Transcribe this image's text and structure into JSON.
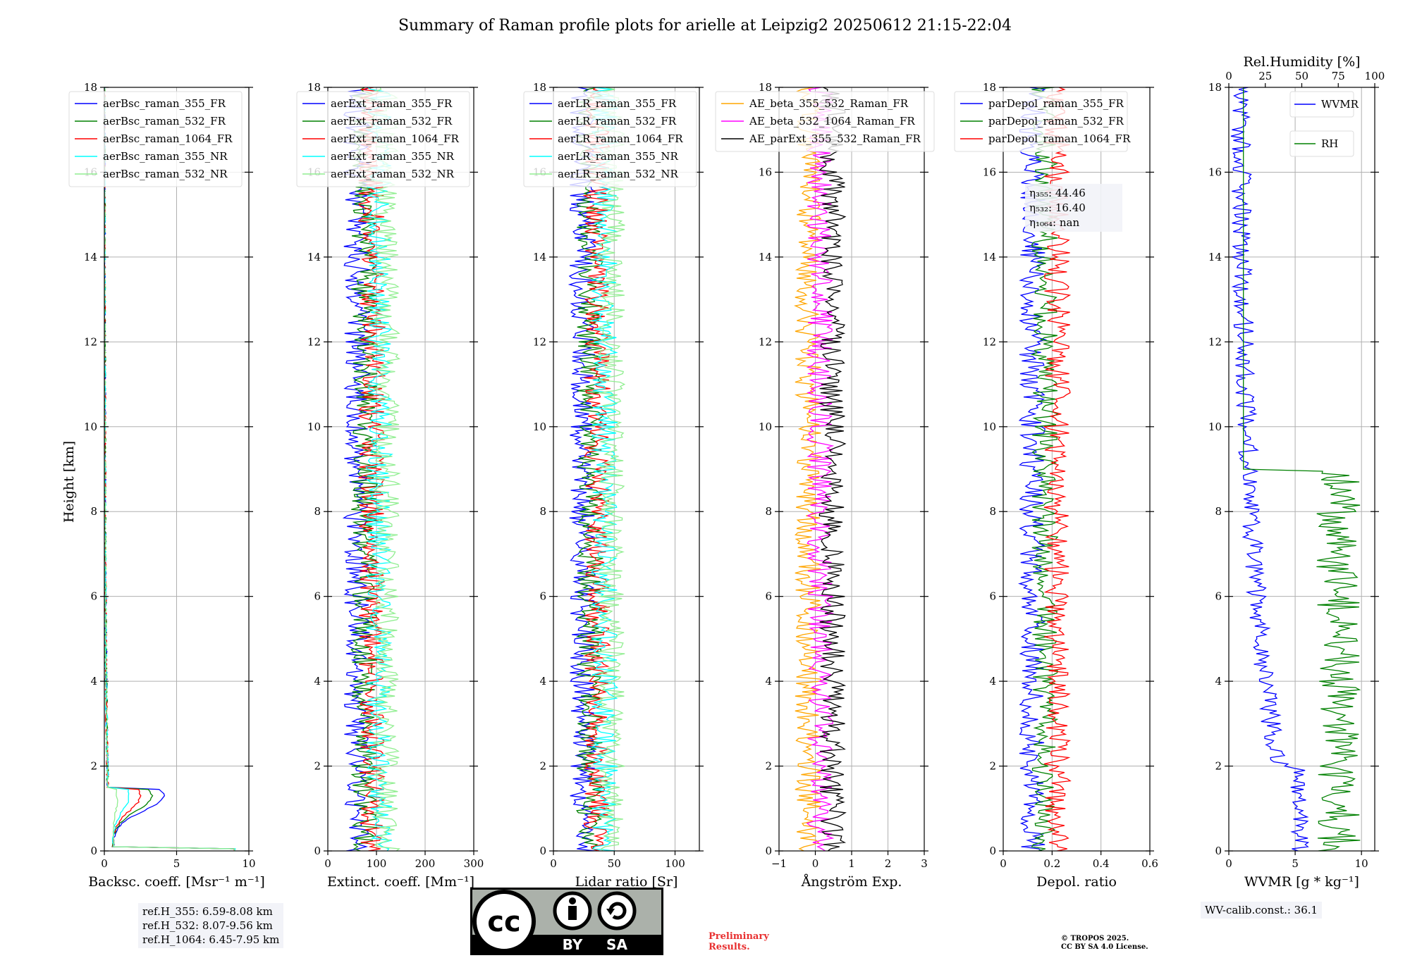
{
  "title": "Summary of Raman profile plots for arielle at Leipzig2 20250612 21:15-22:04",
  "ylabel": "Height [km]",
  "ylim": [
    0,
    18
  ],
  "yticks": [
    0,
    2,
    4,
    6,
    8,
    10,
    12,
    14,
    16,
    18
  ],
  "chart_data": [
    {
      "type": "line",
      "xlabel": "Backsc. coeff. [Msr⁻¹ m⁻¹]",
      "xlim": [
        0,
        10
      ],
      "xticks": [
        0,
        5,
        10
      ],
      "legend_placement": "top-left",
      "series": [
        {
          "name": "aerBsc_raman_355_FR",
          "color": "#0000ff"
        },
        {
          "name": "aerBsc_raman_532_FR",
          "color": "#008000"
        },
        {
          "name": "aerBsc_raman_1064_FR",
          "color": "#ff0000"
        },
        {
          "name": "aerBsc_raman_355_NR",
          "color": "#00ffff"
        },
        {
          "name": "aerBsc_raman_532_NR",
          "color": "#90ee90"
        }
      ]
    },
    {
      "type": "line",
      "xlabel": "Extinct. coeff. [Mm⁻¹]",
      "xlim": [
        0,
        300
      ],
      "xticks": [
        0,
        100,
        200,
        300
      ],
      "legend_placement": "top-left",
      "series": [
        {
          "name": "aerExt_raman_355_FR",
          "color": "#0000ff"
        },
        {
          "name": "aerExt_raman_532_FR",
          "color": "#008000"
        },
        {
          "name": "aerExt_raman_1064_FR",
          "color": "#ff0000"
        },
        {
          "name": "aerExt_raman_355_NR",
          "color": "#00ffff"
        },
        {
          "name": "aerExt_raman_532_NR",
          "color": "#90ee90"
        }
      ]
    },
    {
      "type": "line",
      "xlabel": "Lidar ratio [Sr]",
      "xlim": [
        0,
        120
      ],
      "xticks": [
        0,
        50,
        100
      ],
      "legend_placement": "top-left",
      "series": [
        {
          "name": "aerLR_raman_355_FR",
          "color": "#0000ff"
        },
        {
          "name": "aerLR_raman_532_FR",
          "color": "#008000"
        },
        {
          "name": "aerLR_raman_1064_FR",
          "color": "#ff0000"
        },
        {
          "name": "aerLR_raman_355_NR",
          "color": "#00ffff"
        },
        {
          "name": "aerLR_raman_532_NR",
          "color": "#90ee90"
        }
      ]
    },
    {
      "type": "line",
      "xlabel": "Ångström Exp.",
      "xlim": [
        -1,
        3
      ],
      "xticks": [
        -1,
        0,
        1,
        2,
        3
      ],
      "legend_placement": "top-right",
      "series": [
        {
          "name": "AE_beta_355_532_Raman_FR",
          "color": "#ffa500"
        },
        {
          "name": "AE_beta_532_1064_Raman_FR",
          "color": "#ff00ff"
        },
        {
          "name": "AE_parExt_355_532_Raman_FR",
          "color": "#000000"
        }
      ]
    },
    {
      "type": "line",
      "xlabel": "Depol. ratio",
      "xlim": [
        0,
        0.6
      ],
      "xticks": [
        0.0,
        0.2,
        0.4,
        0.6
      ],
      "legend_placement": "top-left",
      "series": [
        {
          "name": "parDepol_raman_355_FR",
          "color": "#0000ff"
        },
        {
          "name": "parDepol_raman_532_FR",
          "color": "#008000"
        },
        {
          "name": "parDepol_raman_1064_FR",
          "color": "#ff0000"
        }
      ],
      "annotations": [
        "η₃₅₅: 44.46",
        "η₅₃₂: 16.40",
        "η₁₀₆₄: nan"
      ]
    },
    {
      "type": "line",
      "xlabel": "WVMR [g * kg⁻¹]",
      "xlim": [
        0,
        11
      ],
      "xticks": [
        0,
        5,
        10
      ],
      "top_xlabel": "Rel.Humidity [%]",
      "top_xlim": [
        0,
        100
      ],
      "top_xticks": [
        0,
        25,
        50,
        75,
        100
      ],
      "legend_placement": "top-right",
      "series": [
        {
          "name": "WVMR",
          "color": "#0000ff"
        },
        {
          "name": "RH",
          "color": "#008000"
        }
      ]
    }
  ],
  "ref_box": [
    "ref.H_355: 6.59-8.08 km",
    "ref.H_532: 8.07-9.56 km",
    "ref.H_1064: 6.45-7.95 km"
  ],
  "wv_box": "WV-calib.const.: 36.1",
  "footer_prelim": [
    "Preliminary",
    "Results."
  ],
  "footer_copy": [
    "© TROPOS 2025.",
    "CC BY SA 4.0 License."
  ],
  "cc_logo": {
    "left": "BY",
    "right": "SA"
  }
}
